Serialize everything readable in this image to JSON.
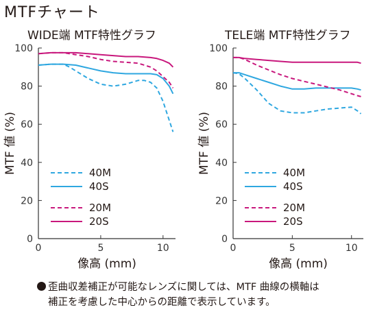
{
  "page_title": "MTFチャート",
  "footnote": {
    "line1": "歪曲収差補正が可能なレンズに関しては、MTF 曲線の横軸は",
    "line2": "補正を考慮した中心からの距離で表示しています。"
  },
  "colors": {
    "40M": "#2ea7e0",
    "40S": "#2ea7e0",
    "20M": "#c8177c",
    "20S": "#c8177c",
    "axis": "#333333"
  },
  "chart_data": [
    {
      "type": "line",
      "title": "WIDE端 MTF特性グラフ",
      "xlabel": "像高 (mm)",
      "ylabel": "MTF 値 (%)",
      "xlim": [
        0,
        11
      ],
      "ylim": [
        0,
        100
      ],
      "xticks": [
        0,
        5,
        10
      ],
      "yticks": [
        0,
        20,
        40,
        60,
        80,
        100
      ],
      "legend_position": "bottom-left",
      "series": [
        {
          "name": "40M",
          "style": "dashed",
          "color": "#2ea7e0",
          "x": [
            0,
            1,
            2,
            2.5,
            3,
            4,
            5,
            6,
            7,
            8,
            8.5,
            9,
            9.5,
            10,
            10.5,
            10.8
          ],
          "y": [
            91,
            91.5,
            91.5,
            90,
            88,
            84,
            81,
            80,
            81,
            83,
            83,
            82,
            79,
            72,
            62,
            56
          ]
        },
        {
          "name": "40S",
          "style": "solid",
          "color": "#2ea7e0",
          "x": [
            0,
            1,
            2,
            3,
            4,
            5,
            6,
            7,
            8,
            9,
            9.5,
            10,
            10.5,
            10.8
          ],
          "y": [
            91,
            91.5,
            91.5,
            91,
            89.5,
            88,
            87,
            86.5,
            86.5,
            86.5,
            86,
            84,
            80,
            76
          ]
        },
        {
          "name": "20M",
          "style": "dashed",
          "color": "#c8177c",
          "x": [
            0,
            1,
            2,
            3,
            4,
            5,
            6,
            7,
            8,
            9,
            9.5,
            10,
            10.5,
            10.8
          ],
          "y": [
            97,
            97.5,
            97.5,
            96.5,
            95.5,
            94,
            93,
            92.5,
            92,
            90,
            88,
            85,
            82,
            79
          ]
        },
        {
          "name": "20S",
          "style": "solid",
          "color": "#c8177c",
          "x": [
            0,
            1,
            2,
            3,
            4,
            5,
            6,
            7,
            8,
            9,
            9.5,
            10,
            10.5,
            10.8
          ],
          "y": [
            97,
            97.5,
            97.5,
            97.5,
            97,
            96.5,
            96,
            95.5,
            95.5,
            95,
            94.5,
            93.5,
            92,
            90
          ]
        }
      ]
    },
    {
      "type": "line",
      "title": "TELE端 MTF特性グラフ",
      "xlabel": "像高 (mm)",
      "ylabel": "MTF 値 (%)",
      "xlim": [
        0,
        11
      ],
      "ylim": [
        0,
        100
      ],
      "xticks": [
        0,
        5,
        10
      ],
      "yticks": [
        0,
        20,
        40,
        60,
        80,
        100
      ],
      "legend_position": "bottom-left",
      "series": [
        {
          "name": "40M",
          "style": "dashed",
          "color": "#2ea7e0",
          "x": [
            0,
            0.5,
            1,
            2,
            3,
            4,
            5,
            6,
            7,
            8,
            9,
            10,
            10.5,
            10.8
          ],
          "y": [
            87,
            86.5,
            84,
            78,
            71,
            67,
            66,
            66,
            67,
            68,
            68.5,
            69,
            67,
            65.5
          ]
        },
        {
          "name": "40S",
          "style": "solid",
          "color": "#2ea7e0",
          "x": [
            0,
            0.5,
            1,
            2,
            3,
            4,
            5,
            6,
            7,
            8,
            9,
            10,
            10.5,
            10.8
          ],
          "y": [
            87,
            87,
            86,
            84,
            82,
            80,
            78.5,
            78.5,
            79,
            79,
            79,
            79,
            78.5,
            78
          ]
        },
        {
          "name": "20M",
          "style": "dashed",
          "color": "#c8177c",
          "x": [
            0,
            0.5,
            1,
            2,
            3,
            4,
            5,
            6,
            7,
            8,
            9,
            10,
            10.5,
            10.8
          ],
          "y": [
            95,
            95,
            94,
            91,
            88.5,
            86,
            84,
            82.5,
            81,
            79.5,
            78,
            76,
            75,
            74.5
          ]
        },
        {
          "name": "20S",
          "style": "solid",
          "color": "#c8177c",
          "x": [
            0,
            0.5,
            1,
            2,
            3,
            4,
            5,
            6,
            7,
            8,
            9,
            10,
            10.5,
            10.8
          ],
          "y": [
            95,
            95,
            94.5,
            94,
            93.5,
            93,
            92.5,
            92.5,
            92.5,
            92.5,
            92.5,
            92.5,
            92.5,
            92
          ]
        }
      ]
    }
  ]
}
